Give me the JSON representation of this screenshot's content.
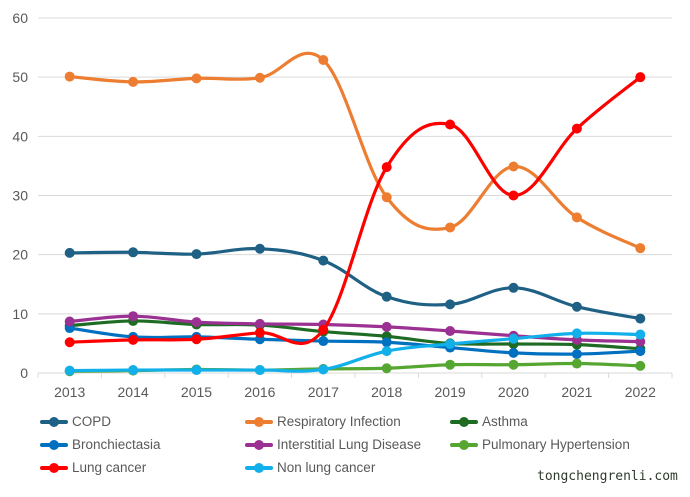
{
  "chart_data": {
    "type": "line",
    "title": "",
    "xlabel": "",
    "ylabel": "",
    "ylim": [
      0,
      60
    ],
    "yticks": [
      "0",
      "10",
      "20",
      "30",
      "40",
      "50",
      "60"
    ],
    "grid": true,
    "legend_position": "bottom",
    "categories": [
      "2013",
      "2014",
      "2015",
      "2016",
      "2017",
      "2018",
      "2019",
      "2020",
      "2021",
      "2022"
    ],
    "series": [
      {
        "name": "COPD",
        "color": "#1f6085",
        "values": [
          20.3,
          20.4,
          20.1,
          21.0,
          19.0,
          12.9,
          11.6,
          14.4,
          11.2,
          9.2
        ]
      },
      {
        "name": "Respiratory Infection",
        "color": "#ed7d31",
        "values": [
          50.1,
          49.2,
          49.8,
          49.9,
          52.9,
          29.7,
          24.6,
          34.9,
          26.3,
          21.1
        ]
      },
      {
        "name": "Asthma",
        "color": "#1e6b23",
        "values": [
          8.0,
          8.8,
          8.2,
          8.1,
          7.0,
          6.2,
          5.0,
          4.9,
          4.8,
          4.1
        ]
      },
      {
        "name": "Bronchiectasia",
        "color": "#0070c0",
        "values": [
          7.6,
          6.1,
          6.1,
          5.7,
          5.4,
          5.2,
          4.3,
          3.4,
          3.2,
          3.7
        ]
      },
      {
        "name": "Interstitial Lung Disease",
        "color": "#9b3192",
        "values": [
          8.7,
          9.6,
          8.6,
          8.3,
          8.2,
          7.8,
          7.1,
          6.3,
          5.6,
          5.3
        ]
      },
      {
        "name": "Pulmonary Hypertension",
        "color": "#56a632",
        "values": [
          0.3,
          0.4,
          0.6,
          0.5,
          0.7,
          0.8,
          1.4,
          1.4,
          1.6,
          1.2
        ]
      },
      {
        "name": "Lung cancer",
        "color": "#ff0000",
        "values": [
          5.2,
          5.6,
          5.7,
          6.8,
          7.3,
          34.8,
          42.0,
          30.0,
          41.3,
          50.0
        ]
      },
      {
        "name": "Non lung cancer",
        "color": "#12b0ea",
        "values": [
          0.4,
          0.5,
          0.5,
          0.5,
          0.6,
          3.7,
          4.9,
          5.8,
          6.7,
          6.5
        ]
      }
    ]
  },
  "watermark": "tongchengrenli.com"
}
